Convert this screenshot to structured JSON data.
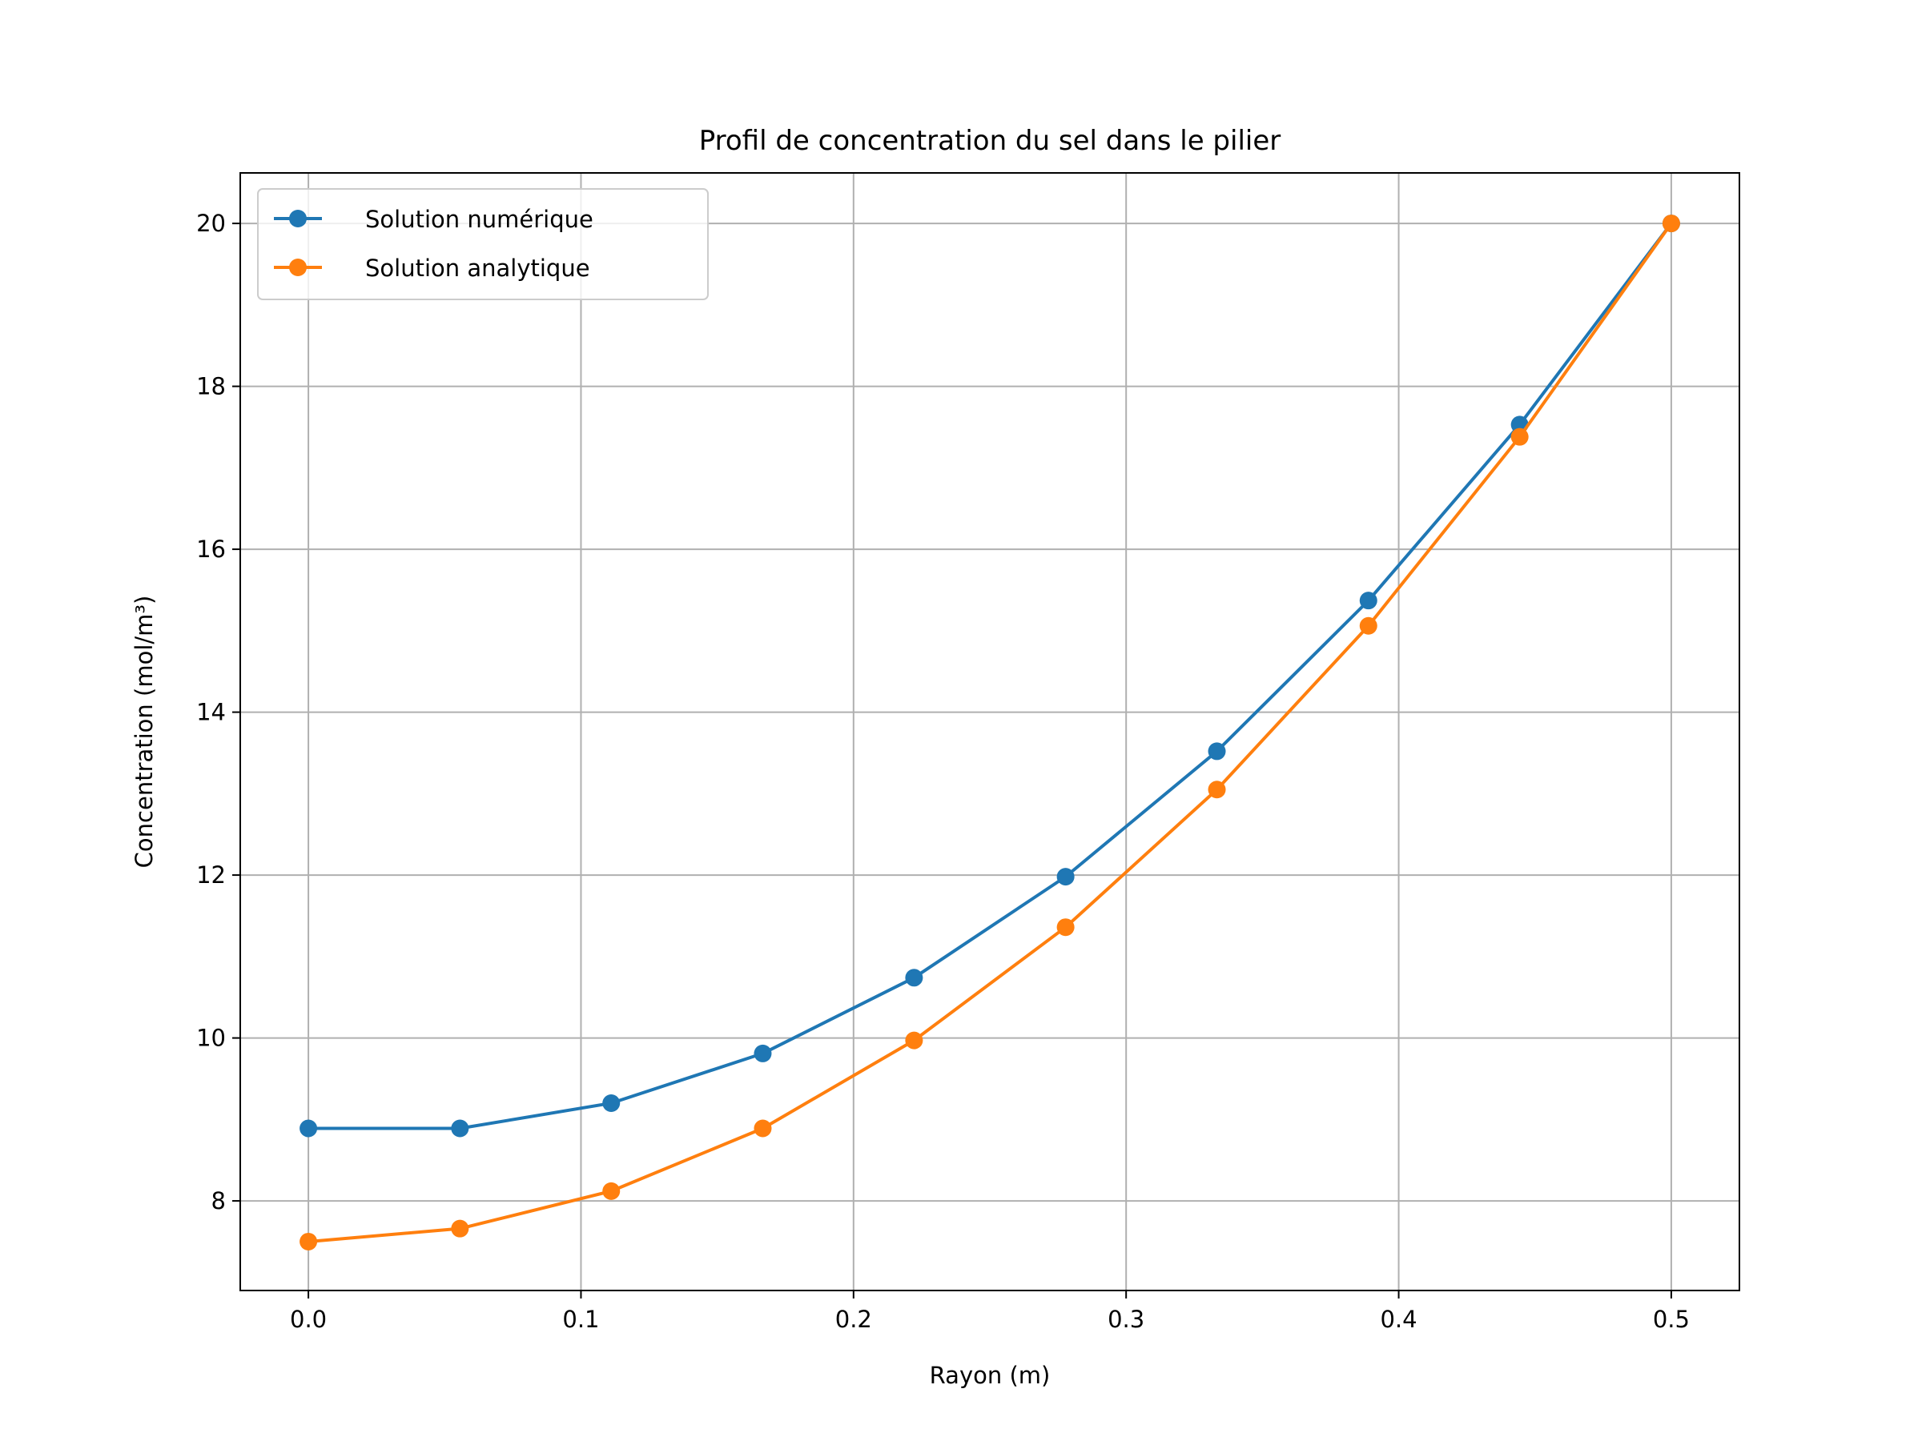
{
  "chart_data": {
    "type": "line",
    "title": "Profil de concentration du sel dans le pilier",
    "xlabel": "Rayon (m)",
    "ylabel": "Concentration (mol/m³)",
    "xlim": [
      -0.025,
      0.525
    ],
    "ylim": [
      6.9,
      20.62
    ],
    "xticks": [
      0.0,
      0.1,
      0.2,
      0.3,
      0.4,
      0.5
    ],
    "xtick_labels": [
      "0.0",
      "0.1",
      "0.2",
      "0.3",
      "0.4",
      "0.5"
    ],
    "yticks": [
      8,
      10,
      12,
      14,
      16,
      18,
      20
    ],
    "ytick_labels": [
      "8",
      "10",
      "12",
      "14",
      "16",
      "18",
      "20"
    ],
    "grid": true,
    "legend_position": "top-left",
    "x": [
      0.0,
      0.0556,
      0.1111,
      0.1667,
      0.2222,
      0.2778,
      0.3333,
      0.3889,
      0.4444,
      0.5
    ],
    "series": [
      {
        "name": "Solution numérique",
        "color": "#1f77b4",
        "marker": "circle",
        "values": [
          8.89,
          8.89,
          9.2,
          9.81,
          10.74,
          11.98,
          13.52,
          15.37,
          17.53,
          20.0
        ]
      },
      {
        "name": "Solution analytique",
        "color": "#ff7f0e",
        "marker": "circle",
        "values": [
          7.5,
          7.66,
          8.12,
          8.89,
          9.97,
          11.36,
          13.05,
          15.06,
          17.38,
          20.0
        ]
      }
    ]
  }
}
